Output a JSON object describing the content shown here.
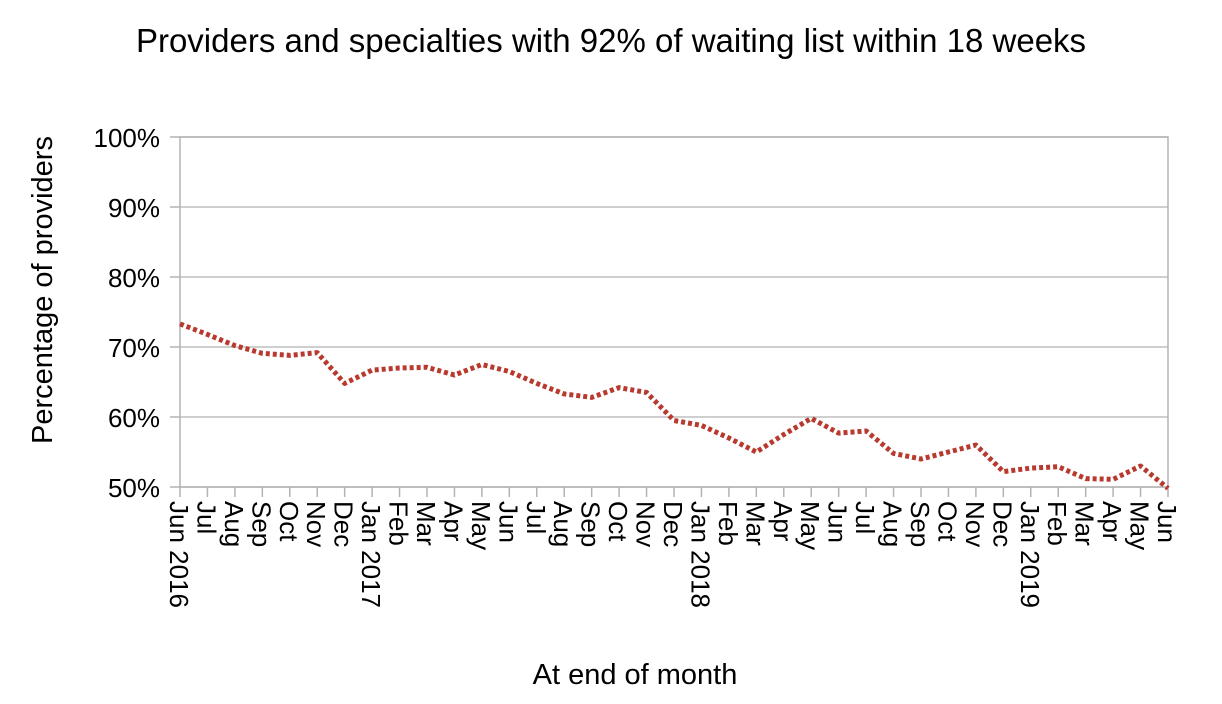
{
  "chart_data": {
    "type": "line",
    "title": "Providers and specialties with 92% of waiting list within 18 weeks",
    "ylabel": "Percentage of providers",
    "xlabel": "At end of month",
    "ylim": [
      50,
      100
    ],
    "yticks": [
      "50%",
      "60%",
      "70%",
      "80%",
      "90%",
      "100%"
    ],
    "ytick_values": [
      50,
      60,
      70,
      80,
      90,
      100
    ],
    "categories": [
      "Jun 2016",
      "Jul",
      "Aug",
      "Sep",
      "Oct",
      "Nov",
      "Dec",
      "Jan 2017",
      "Feb",
      "Mar",
      "Apr",
      "May",
      "Jun",
      "Jul",
      "Aug",
      "Sep",
      "Oct",
      "Nov",
      "Dec",
      "Jan 2018",
      "Feb",
      "Mar",
      "Apr",
      "May",
      "Jun",
      "Jul",
      "Aug",
      "Sep",
      "Oct",
      "Nov",
      "Dec",
      "Jan 2019",
      "Feb",
      "Mar",
      "Apr",
      "May",
      "Jun"
    ],
    "series": [
      {
        "values": [
          73.3,
          71.8,
          70.2,
          69.1,
          68.8,
          69.2,
          64.8,
          66.7,
          67.0,
          67.1,
          66.0,
          67.5,
          66.5,
          64.8,
          63.3,
          62.8,
          64.2,
          63.5,
          59.5,
          58.8,
          57.0,
          55.0,
          57.5,
          59.8,
          57.7,
          58.0,
          54.8,
          54.0,
          55.0,
          56.0,
          52.2,
          52.7,
          52.9,
          51.2,
          51.1,
          53.0,
          49.8
        ],
        "color": "#b83a2f",
        "style": "dotted"
      }
    ],
    "grid": true,
    "legend": "none"
  }
}
